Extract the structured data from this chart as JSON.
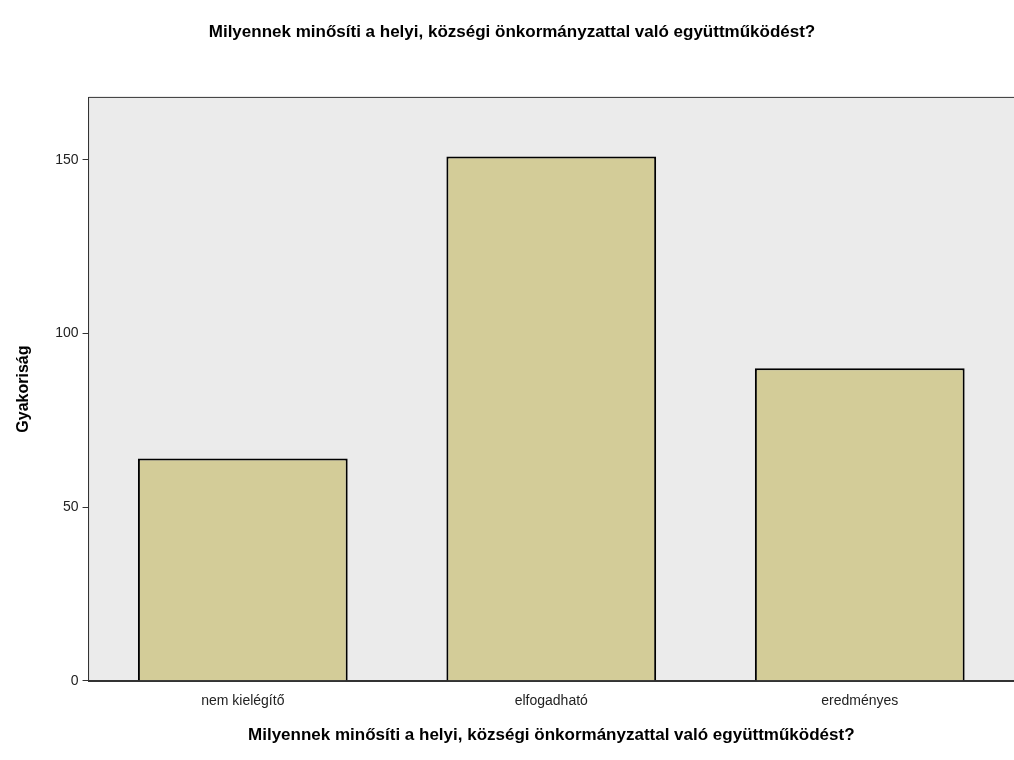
{
  "chart_data": {
    "type": "bar",
    "title": "Milyennek minősíti a helyi, községi önkormányzattal való együttműködést?",
    "xlabel": "Milyennek minősíti a helyi, községi önkormányzattal való együttműködést?",
    "ylabel": "Gyakoriság",
    "categories": [
      "nem kielégítő",
      "elfogadható",
      "eredményes"
    ],
    "values": [
      64,
      151,
      90
    ],
    "color": "#d3cc98",
    "ylim": [
      0,
      168
    ],
    "yticks": [
      0,
      50,
      100,
      150
    ],
    "grid": false,
    "legend": false
  }
}
